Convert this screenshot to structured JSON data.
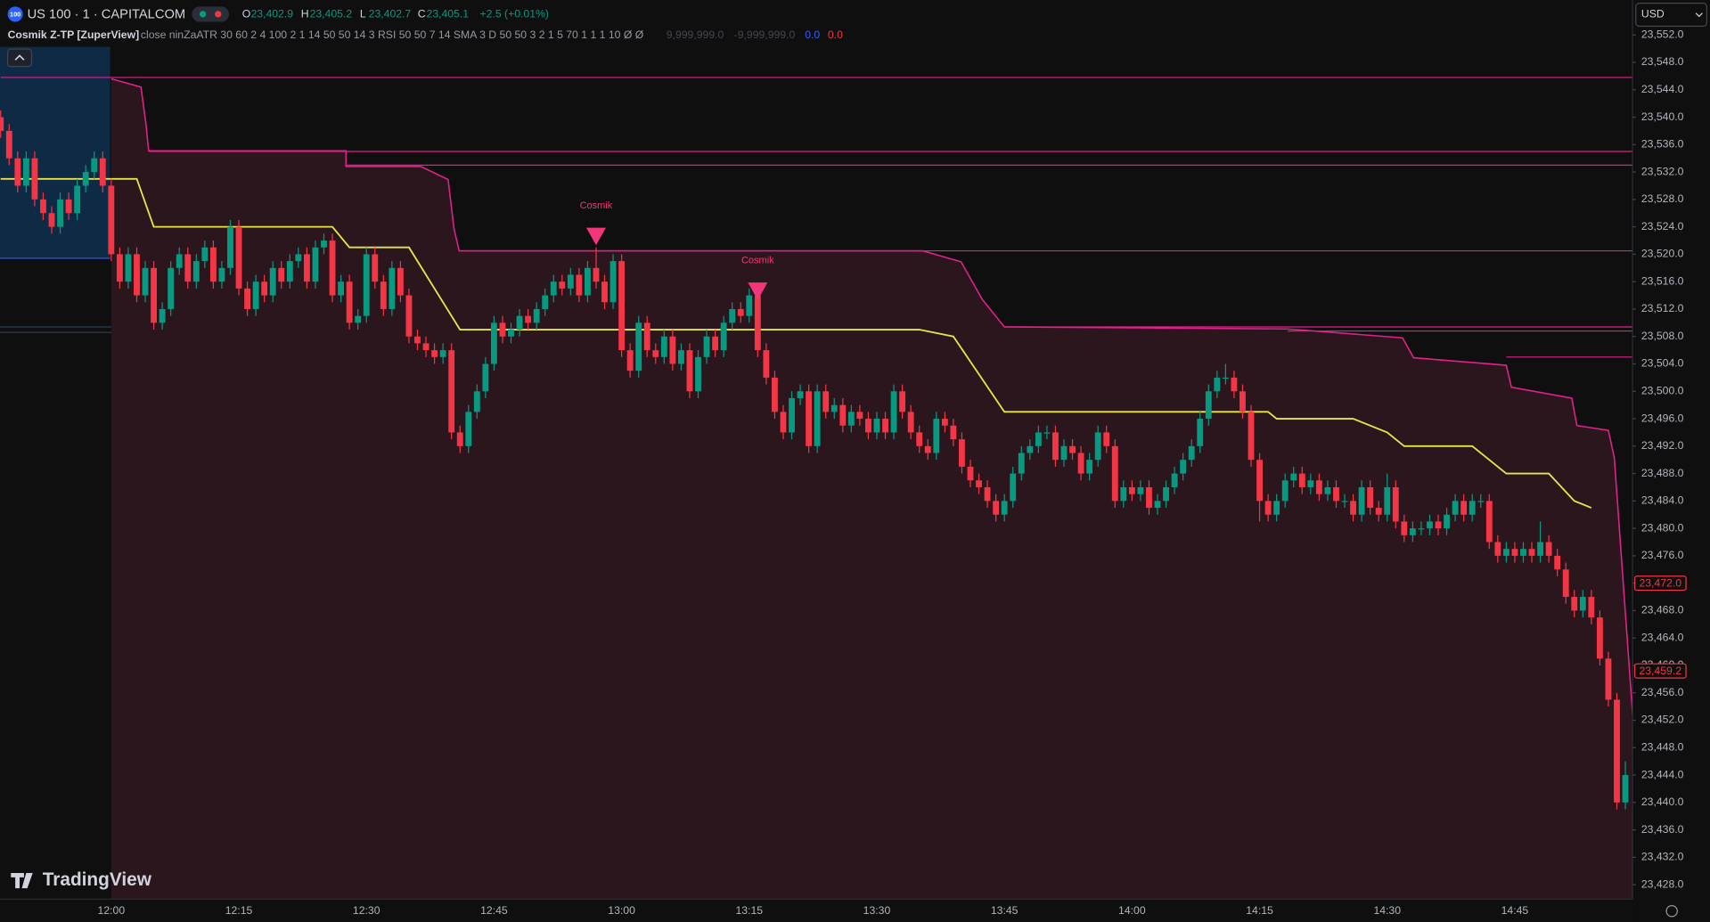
{
  "header": {
    "badge": "100",
    "symbol": "US 100 · 1 · CAPITALCOM",
    "ohlc": [
      {
        "key": "O",
        "value": "23,402.9"
      },
      {
        "key": "H",
        "value": "23,405.2"
      },
      {
        "key": "L",
        "value": "23,402.7"
      },
      {
        "key": "C",
        "value": "23,405.1"
      }
    ],
    "change": "+2.5 (+0.01%)"
  },
  "indicator": {
    "name": "Cosmik Z-TP [ZuperView]",
    "params": "close ninZaATR 30 60 2 4 100 2 1 14 50 50 14 3 RSI 50 50 7 14 SMA 3 D 50 50 3 2 1 5 70 1 1 1 10 Ø Ø",
    "values": [
      "9,999,999.0",
      "-9,999,999.0",
      "0.0",
      "0.0"
    ]
  },
  "currency": "USD",
  "logo": "TradingView",
  "chart_data": {
    "type": "candlestick",
    "categories": [
      null,
      null,
      null,
      null,
      null,
      null,
      null,
      null,
      null,
      null,
      null,
      null,
      null,
      "12:00",
      null,
      null,
      null,
      null,
      null,
      null,
      null,
      null,
      null,
      null,
      null,
      null,
      null,
      null,
      "12:15",
      null,
      null,
      null,
      null,
      null,
      null,
      null,
      null,
      null,
      null,
      null,
      null,
      null,
      null,
      "12:30",
      null,
      null,
      null,
      null,
      null,
      null,
      null,
      null,
      null,
      null,
      null,
      null,
      null,
      null,
      "12:45",
      null,
      null,
      null,
      null,
      null,
      null,
      null,
      null,
      null,
      null,
      null,
      null,
      null,
      null,
      "13:00",
      null,
      null,
      null,
      null,
      null,
      null,
      null,
      null,
      null,
      null,
      null,
      null,
      null,
      null,
      "13:15",
      null,
      null,
      null,
      null,
      null,
      null,
      null,
      null,
      null,
      null,
      null,
      null,
      null,
      null,
      "13:30",
      null,
      null,
      null,
      null,
      null,
      null,
      null,
      null,
      null,
      null,
      null,
      null,
      null,
      null,
      "13:45",
      null,
      null,
      null,
      null,
      null,
      null,
      null,
      null,
      null,
      null,
      null,
      null,
      null,
      null,
      "14:00",
      null,
      null,
      null,
      null,
      null,
      null,
      null,
      null,
      null,
      null,
      null,
      null,
      null,
      null,
      "14:15",
      null,
      null,
      null,
      null,
      null,
      null,
      null,
      null,
      null,
      null,
      null,
      null,
      null,
      null,
      "14:30",
      null,
      null,
      null,
      null,
      null,
      null,
      null,
      null,
      null,
      null,
      null,
      null,
      null,
      null,
      "14:45",
      null,
      null,
      null,
      null,
      null,
      null,
      null,
      null,
      null,
      null,
      null,
      null,
      null
    ],
    "open": [
      23540,
      23538,
      23534,
      23530,
      23534,
      23528,
      23526,
      23524,
      23528,
      23526,
      23530,
      23532,
      23534,
      23530,
      23520,
      23516,
      23520,
      23514,
      23518,
      23510,
      23512,
      23518,
      23520,
      23516,
      23519,
      23521,
      23516,
      23518,
      23524,
      23515,
      23512,
      23516,
      23514,
      23518,
      23516,
      23519,
      23520,
      23516,
      23521,
      23522,
      23514,
      23516,
      23510,
      23511,
      23520,
      23516,
      23512,
      23518,
      23514,
      23508,
      23507,
      23506,
      23505,
      23506,
      23494,
      23492,
      23497,
      23500,
      23504,
      23510,
      23508,
      23509,
      23511,
      23510,
      23512,
      23514,
      23516,
      23515,
      23517,
      23514,
      23518,
      23516,
      23513,
      23519,
      23506,
      23503,
      23510,
      23506,
      23505,
      23508,
      23504,
      23506,
      23500,
      23505,
      23508,
      23506,
      23510,
      23512,
      23511,
      23514,
      23506,
      23502,
      23497,
      23494,
      23499,
      23500,
      23492,
      23500,
      23497,
      23498,
      23495,
      23497,
      23496,
      23494,
      23496,
      23494,
      23500,
      23497,
      23494,
      23492,
      23491,
      23496,
      23495,
      23493,
      23489,
      23487,
      23486,
      23484,
      23482,
      23484,
      23488,
      23491,
      23492,
      23494,
      23494,
      23490,
      23492,
      23491,
      23488,
      23490,
      23494,
      23492,
      23484,
      23486,
      23485,
      23486,
      23483,
      23484,
      23486,
      23488,
      23490,
      23492,
      23496,
      23500,
      23502,
      23502,
      23500,
      23497,
      23490,
      23484,
      23482,
      23484,
      23487,
      23488,
      23486,
      23487,
      23485,
      23486,
      23484,
      23484,
      23482,
      23486,
      23483,
      23482,
      23486,
      23481,
      23479,
      23480,
      23480,
      23481,
      23480,
      23482,
      23484,
      23482,
      23484,
      23484,
      23478,
      23476,
      23477,
      23476,
      23477,
      23476,
      23478,
      23476,
      23474,
      23470,
      23468,
      23470,
      23467,
      23461,
      23455,
      23440
    ],
    "high": [
      23541,
      23539,
      23535,
      23535,
      23535,
      23529,
      23527,
      23529,
      23529,
      23531,
      23533,
      23535,
      23535,
      23531,
      23521,
      23521,
      23521,
      23519,
      23519,
      23513,
      23519,
      23521,
      23521,
      23520,
      23522,
      23522,
      23519,
      23525,
      23525,
      23516,
      23517,
      23517,
      23519,
      23519,
      23520,
      23521,
      23521,
      23522,
      23523,
      23523,
      23517,
      23517,
      23512,
      23521,
      23521,
      23517,
      23519,
      23519,
      23515,
      23509,
      23508,
      23507,
      23507,
      23507,
      23495,
      23498,
      23501,
      23505,
      23511,
      23511,
      23510,
      23512,
      23512,
      23513,
      23515,
      23517,
      23517,
      23518,
      23518,
      23519,
      23521,
      23517,
      23520,
      23520,
      23507,
      23511,
      23511,
      23507,
      23509,
      23509,
      23507,
      23507,
      23506,
      23509,
      23509,
      23511,
      23513,
      23513,
      23515,
      23515,
      23507,
      23503,
      23498,
      23500,
      23501,
      23501,
      23501,
      23501,
      23499,
      23499,
      23498,
      23498,
      23497,
      23497,
      23497,
      23501,
      23501,
      23498,
      23495,
      23493,
      23497,
      23497,
      23496,
      23494,
      23490,
      23488,
      23487,
      23485,
      23485,
      23489,
      23492,
      23493,
      23495,
      23495,
      23495,
      23493,
      23493,
      23492,
      23491,
      23495,
      23495,
      23493,
      23487,
      23487,
      23487,
      23487,
      23485,
      23487,
      23489,
      23491,
      23493,
      23497,
      23501,
      23503,
      23504,
      23503,
      23501,
      23498,
      23491,
      23485,
      23485,
      23488,
      23489,
      23489,
      23488,
      23488,
      23487,
      23487,
      23485,
      23485,
      23487,
      23487,
      23484,
      23488,
      23487,
      23482,
      23481,
      23481,
      23482,
      23482,
      23483,
      23485,
      23485,
      23485,
      23485,
      23485,
      23479,
      23478,
      23478,
      23478,
      23478,
      23481,
      23479,
      23477,
      23475,
      23471,
      23471,
      23471,
      23468,
      23462,
      23456,
      23446
    ],
    "low": [
      23537,
      23533,
      23529,
      23529,
      23527,
      23525,
      23523,
      23523,
      23525,
      23525,
      23529,
      23531,
      23529,
      23519,
      23515,
      23515,
      23513,
      23513,
      23509,
      23509,
      23511,
      23517,
      23515,
      23515,
      23518,
      23515,
      23515,
      23517,
      23514,
      23511,
      23511,
      23513,
      23513,
      23515,
      23515,
      23518,
      23515,
      23515,
      23520,
      23513,
      23513,
      23509,
      23509,
      23510,
      23515,
      23511,
      23511,
      23513,
      23507,
      23506,
      23505,
      23504,
      23504,
      23493,
      23491,
      23491,
      23496,
      23499,
      23503,
      23507,
      23507,
      23508,
      23509,
      23509,
      23511,
      23513,
      23514,
      23514,
      23513,
      23513,
      23515,
      23512,
      23512,
      23505,
      23502,
      23502,
      23505,
      23504,
      23504,
      23503,
      23503,
      23499,
      23499,
      23504,
      23505,
      23505,
      23509,
      23510,
      23510,
      23505,
      23501,
      23496,
      23493,
      23493,
      23498,
      23491,
      23491,
      23496,
      23496,
      23494,
      23494,
      23495,
      23493,
      23493,
      23493,
      23493,
      23496,
      23493,
      23491,
      23490,
      23490,
      23494,
      23492,
      23488,
      23486,
      23485,
      23483,
      23481,
      23481,
      23483,
      23487,
      23490,
      23491,
      23493,
      23489,
      23489,
      23490,
      23487,
      23487,
      23489,
      23491,
      23483,
      23483,
      23484,
      23484,
      23482,
      23482,
      23483,
      23485,
      23487,
      23489,
      23491,
      23495,
      23499,
      23501,
      23499,
      23496,
      23489,
      23481,
      23481,
      23481,
      23483,
      23486,
      23485,
      23485,
      23484,
      23484,
      23483,
      23483,
      23481,
      23481,
      23482,
      23481,
      23481,
      23480,
      23478,
      23478,
      23479,
      23479,
      23479,
      23479,
      23481,
      23481,
      23481,
      23483,
      23477,
      23475,
      23475,
      23475,
      23475,
      23475,
      23475,
      23475,
      23473,
      23469,
      23467,
      23467,
      23466,
      23460,
      23454,
      23439,
      23439
    ],
    "close": [
      23538,
      23534,
      23530,
      23534,
      23528,
      23526,
      23524,
      23528,
      23526,
      23530,
      23532,
      23534,
      23530,
      23520,
      23516,
      23520,
      23514,
      23518,
      23510,
      23512,
      23518,
      23520,
      23516,
      23519,
      23521,
      23516,
      23518,
      23524,
      23515,
      23512,
      23516,
      23514,
      23518,
      23516,
      23519,
      23520,
      23516,
      23521,
      23522,
      23514,
      23516,
      23510,
      23511,
      23520,
      23516,
      23512,
      23518,
      23514,
      23508,
      23507,
      23506,
      23505,
      23506,
      23494,
      23492,
      23497,
      23500,
      23504,
      23510,
      23508,
      23509,
      23511,
      23510,
      23512,
      23514,
      23516,
      23515,
      23517,
      23514,
      23518,
      23516,
      23513,
      23519,
      23506,
      23503,
      23510,
      23506,
      23505,
      23508,
      23504,
      23506,
      23500,
      23505,
      23508,
      23506,
      23510,
      23512,
      23511,
      23514,
      23506,
      23502,
      23497,
      23494,
      23499,
      23500,
      23492,
      23500,
      23497,
      23498,
      23495,
      23497,
      23496,
      23494,
      23496,
      23494,
      23500,
      23497,
      23494,
      23492,
      23491,
      23496,
      23495,
      23493,
      23489,
      23487,
      23486,
      23484,
      23482,
      23484,
      23488,
      23491,
      23492,
      23494,
      23494,
      23490,
      23492,
      23491,
      23488,
      23490,
      23494,
      23492,
      23484,
      23486,
      23485,
      23486,
      23483,
      23484,
      23486,
      23488,
      23490,
      23492,
      23496,
      23500,
      23502,
      23502,
      23500,
      23497,
      23490,
      23484,
      23482,
      23484,
      23487,
      23488,
      23486,
      23487,
      23485,
      23486,
      23484,
      23484,
      23482,
      23486,
      23483,
      23482,
      23486,
      23481,
      23479,
      23480,
      23480,
      23481,
      23480,
      23482,
      23484,
      23482,
      23484,
      23484,
      23478,
      23476,
      23477,
      23476,
      23477,
      23476,
      23478,
      23476,
      23474,
      23470,
      23468,
      23470,
      23467,
      23461,
      23455,
      23440,
      23444
    ],
    "colors": {
      "up": "#089981",
      "down": "#f23645"
    },
    "ylim": [
      23425.9,
      23557.1
    ],
    "yticks": [
      {
        "value": 23552,
        "label": "23,552.0"
      },
      {
        "value": 23548,
        "label": "23,548.0"
      },
      {
        "value": 23544,
        "label": "23,544.0"
      },
      {
        "value": 23540,
        "label": "23,540.0"
      },
      {
        "value": 23536,
        "label": "23,536.0"
      },
      {
        "value": 23532,
        "label": "23,532.0"
      },
      {
        "value": 23528,
        "label": "23,528.0"
      },
      {
        "value": 23524,
        "label": "23,524.0"
      },
      {
        "value": 23520,
        "label": "23,520.0"
      },
      {
        "value": 23516,
        "label": "23,516.0"
      },
      {
        "value": 23512,
        "label": "23,512.0"
      },
      {
        "value": 23508,
        "label": "23,508.0"
      },
      {
        "value": 23504,
        "label": "23,504.0"
      },
      {
        "value": 23500,
        "label": "23,500.0"
      },
      {
        "value": 23496,
        "label": "23,496.0"
      },
      {
        "value": 23492,
        "label": "23,492.0"
      },
      {
        "value": 23488,
        "label": "23,488.0"
      },
      {
        "value": 23484,
        "label": "23,484.0"
      },
      {
        "value": 23480,
        "label": "23,480.0"
      },
      {
        "value": 23476,
        "label": "23,476.0"
      },
      {
        "value": 23472,
        "label": "23,472.0"
      },
      {
        "value": 23468,
        "label": "23,468.0"
      },
      {
        "value": 23464,
        "label": "23,464.0"
      },
      {
        "value": 23460,
        "label": "23,460.0"
      },
      {
        "value": 23456,
        "label": "23,456.0"
      },
      {
        "value": 23452,
        "label": "23,452.0"
      },
      {
        "value": 23448,
        "label": "23,448.0"
      },
      {
        "value": 23444,
        "label": "23,444.0"
      },
      {
        "value": 23440,
        "label": "23,440.0"
      },
      {
        "value": 23436,
        "label": "23,436.0"
      },
      {
        "value": 23432,
        "label": "23,432.0"
      },
      {
        "value": 23428,
        "label": "23,428.0"
      }
    ],
    "price_tags": [
      {
        "value": 23472,
        "label": "23,472.0"
      },
      {
        "value": 23459.2,
        "label": "23,459.2"
      }
    ],
    "trail": {
      "color": "#e0218a",
      "x": [
        13,
        16.5,
        17.1,
        17.4,
        40.6,
        40.6,
        49.4,
        52.6,
        53.3,
        53.9,
        108.4,
        112.9,
        115.4,
        118,
        151.3,
        164.8,
        166.1,
        177,
        177.6,
        184.7,
        185.3,
        189,
        189.7,
        191.9
      ],
      "values": [
        23545.6,
        23544.4,
        23538.8,
        23535.1,
        23535.1,
        23532.8,
        23532.8,
        23530.9,
        23523.7,
        23520.5,
        23520.5,
        23518.9,
        23513.4,
        23509.4,
        23509.1,
        23507.8,
        23504.9,
        23503.8,
        23500.6,
        23499,
        23495,
        23494.3,
        23490.3,
        23452
      ]
    },
    "support": {
      "color": "#e6e44a",
      "x": [
        0,
        16,
        18,
        39,
        41,
        48,
        54,
        108,
        112,
        118,
        149,
        150,
        159,
        163,
        165,
        173,
        177,
        182,
        185,
        187
      ],
      "values": [
        23531,
        23531,
        23524,
        23524,
        23521,
        23521,
        23509,
        23509,
        23508,
        23497,
        23497,
        23496,
        23496,
        23494,
        23492,
        23492,
        23488,
        23488,
        23484,
        23483
      ]
    },
    "levels": {
      "color": "#e0218a",
      "values": [
        23545.8,
        23535,
        23533,
        23520.5,
        23509.4,
        23508.8,
        23505
      ],
      "from": [
        0,
        17.4,
        40.6,
        53.9,
        118,
        151.3,
        177
      ]
    },
    "signals": [
      {
        "text": "Cosmik",
        "index": 70,
        "value": 23522.6
      },
      {
        "text": "Cosmik",
        "index": 89,
        "value": 23514.6
      }
    ]
  }
}
